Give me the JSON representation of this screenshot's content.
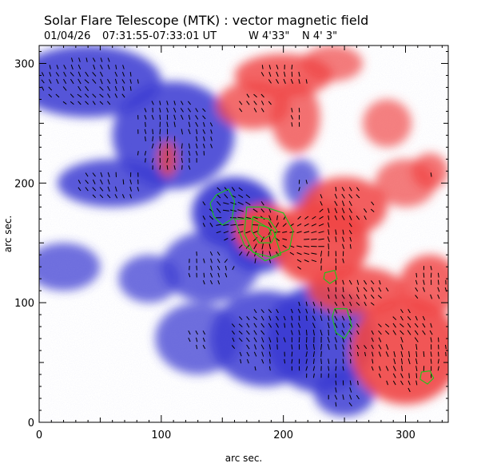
{
  "chart_data": {
    "type": "heatmap",
    "title": "Solar Flare Telescope (MTK) : vector magnetic field",
    "subtitle": {
      "date": "01/04/26",
      "time": "07:31:55-07:33:01 UT",
      "lon": "W 4'33\"",
      "lat": "N 4' 3\""
    },
    "xlabel": "arc sec.",
    "ylabel": "arc sec.",
    "xlim": [
      0,
      335
    ],
    "ylim": [
      0,
      315
    ],
    "xticks": [
      0,
      100,
      200,
      300
    ],
    "yticks": [
      0,
      100,
      200,
      300
    ],
    "colors": {
      "positive_polarity": "#f04646",
      "negative_polarity": "#3c3cd2",
      "contour": "#18c818",
      "vector": "#000000"
    },
    "field_regions": [
      {
        "polarity": "negative",
        "x": 40,
        "y": 285,
        "rx": 60,
        "ry": 30,
        "strength": 0.8
      },
      {
        "polarity": "negative",
        "x": 110,
        "y": 240,
        "rx": 50,
        "ry": 45,
        "strength": 0.8
      },
      {
        "polarity": "negative",
        "x": 60,
        "y": 200,
        "rx": 45,
        "ry": 20,
        "strength": 0.75
      },
      {
        "polarity": "negative",
        "x": 160,
        "y": 175,
        "rx": 35,
        "ry": 30,
        "strength": 1.0
      },
      {
        "polarity": "negative",
        "x": 180,
        "y": 145,
        "rx": 25,
        "ry": 20,
        "strength": 0.9
      },
      {
        "polarity": "negative",
        "x": 140,
        "y": 130,
        "rx": 40,
        "ry": 30,
        "strength": 0.6
      },
      {
        "polarity": "negative",
        "x": 230,
        "y": 70,
        "rx": 45,
        "ry": 45,
        "strength": 0.9
      },
      {
        "polarity": "negative",
        "x": 185,
        "y": 70,
        "rx": 45,
        "ry": 40,
        "strength": 0.75
      },
      {
        "polarity": "negative",
        "x": 250,
        "y": 25,
        "rx": 25,
        "ry": 20,
        "strength": 0.75
      },
      {
        "polarity": "negative",
        "x": 130,
        "y": 70,
        "rx": 35,
        "ry": 30,
        "strength": 0.5
      },
      {
        "polarity": "negative",
        "x": 20,
        "y": 130,
        "rx": 30,
        "ry": 20,
        "strength": 0.45
      },
      {
        "polarity": "negative",
        "x": 90,
        "y": 120,
        "rx": 25,
        "ry": 20,
        "strength": 0.45
      },
      {
        "polarity": "negative",
        "x": 215,
        "y": 200,
        "rx": 15,
        "ry": 20,
        "strength": 0.5
      },
      {
        "polarity": "positive",
        "x": 185,
        "y": 160,
        "rx": 25,
        "ry": 22,
        "strength": 1.0
      },
      {
        "polarity": "positive",
        "x": 230,
        "y": 150,
        "rx": 40,
        "ry": 35,
        "strength": 0.9
      },
      {
        "polarity": "positive",
        "x": 250,
        "y": 180,
        "rx": 35,
        "ry": 25,
        "strength": 0.8
      },
      {
        "polarity": "positive",
        "x": 260,
        "y": 110,
        "rx": 40,
        "ry": 20,
        "strength": 0.75
      },
      {
        "polarity": "positive",
        "x": 300,
        "y": 60,
        "rx": 45,
        "ry": 45,
        "strength": 0.9
      },
      {
        "polarity": "positive",
        "x": 320,
        "y": 115,
        "rx": 25,
        "ry": 25,
        "strength": 0.7
      },
      {
        "polarity": "positive",
        "x": 200,
        "y": 290,
        "rx": 40,
        "ry": 18,
        "strength": 0.7
      },
      {
        "polarity": "positive",
        "x": 175,
        "y": 265,
        "rx": 30,
        "ry": 20,
        "strength": 0.6
      },
      {
        "polarity": "positive",
        "x": 210,
        "y": 255,
        "rx": 20,
        "ry": 30,
        "strength": 0.55
      },
      {
        "polarity": "positive",
        "x": 105,
        "y": 220,
        "rx": 8,
        "ry": 15,
        "strength": 0.55
      },
      {
        "polarity": "positive",
        "x": 300,
        "y": 200,
        "rx": 25,
        "ry": 20,
        "strength": 0.4
      },
      {
        "polarity": "positive",
        "x": 240,
        "y": 300,
        "rx": 25,
        "ry": 15,
        "strength": 0.4
      },
      {
        "polarity": "positive",
        "x": 285,
        "y": 250,
        "rx": 20,
        "ry": 20,
        "strength": 0.35
      },
      {
        "polarity": "positive",
        "x": 320,
        "y": 210,
        "rx": 15,
        "ry": 15,
        "strength": 0.5
      }
    ],
    "contours": [
      {
        "label": "negative-core",
        "points": [
          [
            145,
            190
          ],
          [
            155,
            195
          ],
          [
            160,
            185
          ],
          [
            158,
            170
          ],
          [
            150,
            165
          ],
          [
            143,
            172
          ],
          [
            140,
            183
          ]
        ]
      },
      {
        "label": "negative-tail",
        "points": [
          [
            160,
            170
          ],
          [
            168,
            148
          ],
          [
            185,
            135
          ],
          [
            198,
            140
          ],
          [
            192,
            160
          ],
          [
            175,
            170
          ]
        ]
      },
      {
        "label": "positive-outer",
        "points": [
          [
            170,
            180
          ],
          [
            185,
            180
          ],
          [
            200,
            175
          ],
          [
            208,
            160
          ],
          [
            205,
            145
          ],
          [
            190,
            138
          ],
          [
            175,
            142
          ],
          [
            168,
            158
          ]
        ]
      },
      {
        "label": "positive-mid",
        "points": [
          [
            175,
            172
          ],
          [
            188,
            170
          ],
          [
            195,
            160
          ],
          [
            190,
            150
          ],
          [
            180,
            150
          ],
          [
            174,
            160
          ]
        ]
      },
      {
        "label": "positive-inner",
        "points": [
          [
            180,
            165
          ],
          [
            188,
            163
          ],
          [
            190,
            157
          ],
          [
            184,
            153
          ],
          [
            179,
            158
          ]
        ]
      },
      {
        "label": "positive-small",
        "points": [
          [
            234,
            125
          ],
          [
            242,
            127
          ],
          [
            244,
            120
          ],
          [
            238,
            116
          ],
          [
            233,
            120
          ]
        ]
      },
      {
        "label": "negative-right",
        "points": [
          [
            242,
            95
          ],
          [
            252,
            95
          ],
          [
            256,
            80
          ],
          [
            250,
            70
          ],
          [
            243,
            75
          ],
          [
            240,
            88
          ]
        ]
      },
      {
        "label": "positive-right",
        "points": [
          [
            313,
            42
          ],
          [
            320,
            43
          ],
          [
            323,
            37
          ],
          [
            318,
            32
          ],
          [
            312,
            36
          ]
        ]
      }
    ],
    "vector_field": {
      "grid_spacing": 6,
      "shear_center": [
        190,
        160
      ],
      "region_x": [
        0,
        335
      ],
      "region_y": [
        0,
        315
      ]
    }
  }
}
